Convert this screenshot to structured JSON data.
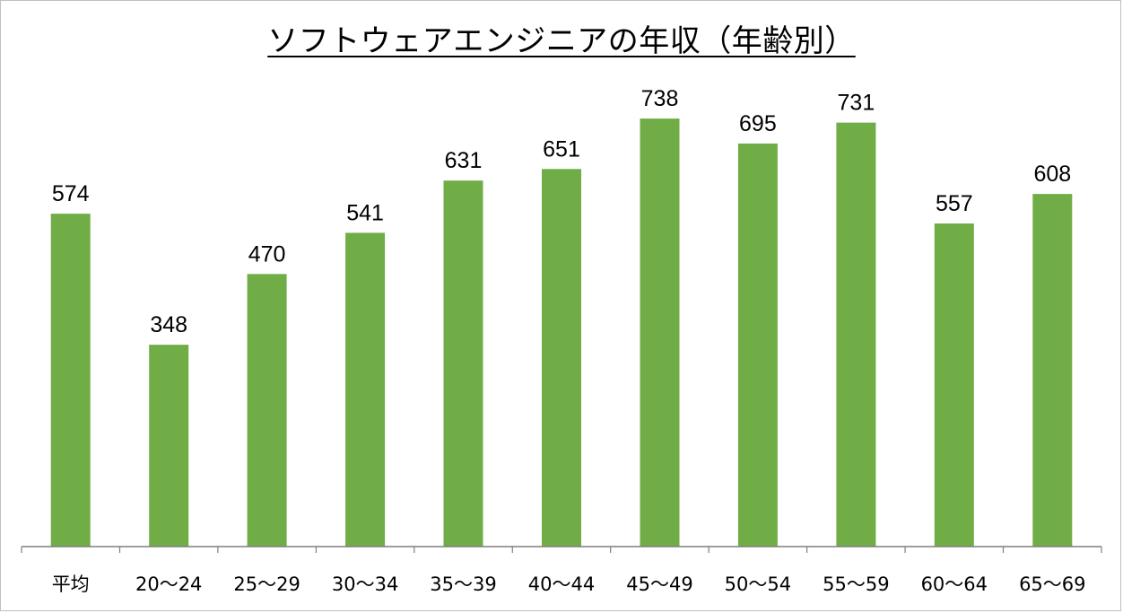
{
  "chart_data": {
    "type": "bar",
    "title": "ソフトウェアエンジニアの年収（年齢別）",
    "categories": [
      "平均",
      "20〜24",
      "25〜29",
      "30〜34",
      "35〜39",
      "40〜44",
      "45〜49",
      "50〜54",
      "55〜59",
      "60〜64",
      "65〜69"
    ],
    "values": [
      574,
      348,
      470,
      541,
      631,
      651,
      738,
      695,
      731,
      557,
      608
    ],
    "ylim": [
      0,
      800
    ],
    "grid": false,
    "legend": "none",
    "bar_color": "#70ad47",
    "axis_color": "#7f7f7f",
    "data_labels": true
  }
}
